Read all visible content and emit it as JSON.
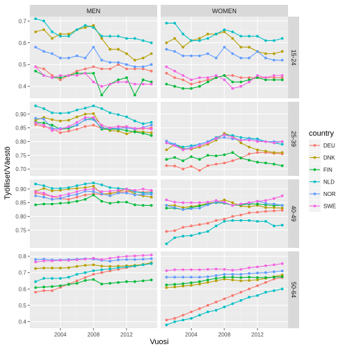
{
  "chart_data": {
    "type": "line",
    "xlabel": "Vuosi",
    "ylabel": "Työlliset/Väestö",
    "x": [
      2001,
      2002,
      2003,
      2004,
      2005,
      2006,
      2007,
      2008,
      2009,
      2010,
      2011,
      2012,
      2013,
      2014,
      2015
    ],
    "x_ticks": [
      2004,
      2008,
      2012
    ],
    "x_tick_labels": [
      "2004",
      "2008",
      "2012"
    ],
    "xlim": [
      2000.3,
      2015.7
    ],
    "grid": true,
    "legend": {
      "title": "country",
      "position": "right"
    },
    "columns": [
      "MEN",
      "WOMEN"
    ],
    "rows": [
      {
        "label": "15-24",
        "ylim": [
          0.345,
          0.72
        ],
        "ticks": [
          0.4,
          0.5,
          0.6,
          0.7
        ],
        "tick_labels": [
          "0.4",
          "0.5",
          "0.6",
          "0.7"
        ]
      },
      {
        "label": "25-39",
        "ylim": [
          0.675,
          0.945
        ],
        "ticks": [
          0.7,
          0.75,
          0.8,
          0.85,
          0.9
        ],
        "tick_labels": [
          "0.70",
          "0.75",
          "0.80",
          "0.85",
          "0.90"
        ]
      },
      {
        "label": "40-49",
        "ylim": [
          0.685,
          0.935
        ],
        "ticks": [
          0.75,
          0.8,
          0.85,
          0.9
        ],
        "tick_labels": [
          "0.75",
          "0.80",
          "0.85",
          "0.90"
        ]
      },
      {
        "label": "50-64",
        "ylim": [
          0.36,
          0.83
        ],
        "ticks": [
          0.4,
          0.5,
          0.6,
          0.7,
          0.8
        ],
        "tick_labels": [
          "0.4",
          "0.5",
          "0.6",
          "0.7",
          "0.8"
        ]
      }
    ],
    "series": [
      {
        "name": "DEU",
        "color": "#F8766D",
        "values": {
          "MEN": {
            "15-24": [
              0.49,
              0.48,
              0.45,
              0.43,
              0.45,
              0.47,
              0.48,
              0.49,
              0.48,
              0.48,
              0.5,
              0.48,
              0.48,
              0.48,
              0.47
            ],
            "25-39": [
              0.862,
              0.855,
              0.848,
              0.832,
              0.838,
              0.845,
              0.855,
              0.86,
              0.847,
              0.85,
              0.855,
              0.85,
              0.845,
              0.847,
              0.85
            ],
            "40-49": [
              0.885,
              0.88,
              0.872,
              0.865,
              0.862,
              0.87,
              0.878,
              0.882,
              0.88,
              0.885,
              0.888,
              0.89,
              0.89,
              0.888,
              0.89
            ],
            "50-64": [
              0.58,
              0.59,
              0.59,
              0.61,
              0.63,
              0.65,
              0.67,
              0.69,
              0.7,
              0.71,
              0.72,
              0.73,
              0.74,
              0.75,
              0.76
            ]
          },
          "WOMEN": {
            "15-24": [
              0.46,
              0.44,
              0.43,
              0.41,
              0.42,
              0.43,
              0.44,
              0.45,
              0.45,
              0.44,
              0.44,
              0.44,
              0.44,
              0.44,
              0.44
            ],
            "25-39": [
              0.712,
              0.711,
              0.7,
              0.71,
              0.695,
              0.712,
              0.718,
              0.722,
              0.73,
              0.74,
              0.755,
              0.76,
              0.76,
              0.757,
              0.755
            ],
            "40-49": [
              0.745,
              0.748,
              0.76,
              0.765,
              0.77,
              0.775,
              0.785,
              0.79,
              0.8,
              0.805,
              0.813,
              0.815,
              0.818,
              0.82,
              0.822
            ],
            "50-64": [
              0.41,
              0.42,
              0.44,
              0.46,
              0.48,
              0.5,
              0.52,
              0.54,
              0.56,
              0.58,
              0.6,
              0.62,
              0.64,
              0.66,
              0.67
            ]
          }
        }
      },
      {
        "name": "DNK",
        "color": "#B79F00",
        "values": {
          "MEN": {
            "15-24": [
              0.65,
              0.66,
              0.62,
              0.64,
              0.64,
              0.66,
              0.67,
              0.68,
              0.62,
              0.57,
              0.57,
              0.55,
              0.52,
              0.53,
              0.55
            ],
            "25-39": [
              0.878,
              0.888,
              0.88,
              0.875,
              0.878,
              0.89,
              0.9,
              0.902,
              0.855,
              0.84,
              0.838,
              0.828,
              0.838,
              0.835,
              0.832
            ],
            "40-49": [
              0.892,
              0.902,
              0.893,
              0.895,
              0.9,
              0.902,
              0.905,
              0.91,
              0.882,
              0.882,
              0.89,
              0.9,
              0.88,
              0.875,
              0.87
            ],
            "50-64": [
              0.725,
              0.728,
              0.728,
              0.728,
              0.73,
              0.738,
              0.745,
              0.748,
              0.74,
              0.738,
              0.74,
              0.742,
              0.745,
              0.75,
              0.76
            ]
          },
          "WOMEN": {
            "15-24": [
              0.6,
              0.62,
              0.58,
              0.61,
              0.62,
              0.64,
              0.64,
              0.65,
              0.62,
              0.58,
              0.58,
              0.56,
              0.55,
              0.55,
              0.56
            ],
            "25-39": [
              0.77,
              0.79,
              0.775,
              0.772,
              0.78,
              0.79,
              0.805,
              0.83,
              0.82,
              0.795,
              0.78,
              0.77,
              0.765,
              0.76,
              0.76
            ],
            "40-49": [
              0.84,
              0.84,
              0.832,
              0.836,
              0.84,
              0.848,
              0.852,
              0.86,
              0.85,
              0.838,
              0.835,
              0.84,
              0.832,
              0.832,
              0.83
            ],
            "50-64": [
              0.608,
              0.612,
              0.618,
              0.622,
              0.63,
              0.64,
              0.65,
              0.66,
              0.655,
              0.65,
              0.652,
              0.656,
              0.665,
              0.675,
              0.685
            ]
          }
        }
      },
      {
        "name": "FIN",
        "color": "#00BA38",
        "values": {
          "MEN": {
            "15-24": [
              0.47,
              0.45,
              0.44,
              0.44,
              0.45,
              0.46,
              0.46,
              0.46,
              0.36,
              0.41,
              0.43,
              0.44,
              0.36,
              0.43,
              0.42
            ],
            "25-39": [
              0.87,
              0.868,
              0.86,
              0.845,
              0.848,
              0.86,
              0.88,
              0.885,
              0.845,
              0.845,
              0.845,
              0.84,
              0.835,
              0.83,
              0.822
            ],
            "40-49": [
              0.842,
              0.845,
              0.845,
              0.848,
              0.85,
              0.855,
              0.862,
              0.878,
              0.855,
              0.848,
              0.852,
              0.852,
              0.842,
              0.84,
              0.84
            ],
            "50-64": [
              0.608,
              0.612,
              0.615,
              0.62,
              0.628,
              0.635,
              0.652,
              0.658,
              0.63,
              0.635,
              0.64,
              0.645,
              0.645,
              0.65,
              0.655
            ]
          },
          "WOMEN": {
            "15-24": [
              0.41,
              0.4,
              0.39,
              0.39,
              0.4,
              0.42,
              0.44,
              0.45,
              0.42,
              0.42,
              0.43,
              0.44,
              0.43,
              0.43,
              0.43
            ],
            "25-39": [
              0.735,
              0.742,
              0.73,
              0.745,
              0.735,
              0.75,
              0.748,
              0.752,
              0.76,
              0.74,
              0.732,
              0.725,
              0.722,
              0.718,
              0.712
            ],
            "40-49": [
              0.83,
              0.83,
              0.825,
              0.832,
              0.838,
              0.845,
              0.85,
              0.848,
              0.84,
              0.842,
              0.845,
              0.845,
              0.842,
              0.84,
              0.84
            ],
            "50-64": [
              0.625,
              0.628,
              0.632,
              0.638,
              0.645,
              0.655,
              0.665,
              0.672,
              0.672,
              0.67,
              0.672,
              0.67,
              0.67,
              0.672,
              0.675
            ]
          }
        }
      },
      {
        "name": "NLD",
        "color": "#00BFC4",
        "values": {
          "MEN": {
            "15-24": [
              0.71,
              0.7,
              0.65,
              0.63,
              0.63,
              0.66,
              0.68,
              0.67,
              0.63,
              0.63,
              0.63,
              0.62,
              0.62,
              0.61,
              0.6
            ],
            "25-39": [
              0.93,
              0.92,
              0.905,
              0.903,
              0.905,
              0.915,
              0.922,
              0.93,
              0.92,
              0.905,
              0.898,
              0.89,
              0.875,
              0.865,
              0.87
            ],
            "40-49": [
              0.918,
              0.912,
              0.902,
              0.902,
              0.905,
              0.912,
              0.918,
              0.922,
              0.915,
              0.905,
              0.902,
              0.9,
              0.89,
              0.885,
              0.885
            ],
            "50-64": [
              0.645,
              0.665,
              0.665,
              0.665,
              0.672,
              0.69,
              0.7,
              0.712,
              0.718,
              0.722,
              0.73,
              0.735,
              0.74,
              0.748,
              0.755
            ]
          },
          "WOMEN": {
            "15-24": [
              0.69,
              0.69,
              0.64,
              0.61,
              0.61,
              0.62,
              0.64,
              0.66,
              0.65,
              0.63,
              0.63,
              0.63,
              0.61,
              0.61,
              0.62
            ],
            "25-39": [
              0.795,
              0.79,
              0.78,
              0.785,
              0.79,
              0.8,
              0.815,
              0.825,
              0.822,
              0.815,
              0.812,
              0.81,
              0.8,
              0.795,
              0.79
            ],
            "40-49": [
              0.7,
              0.722,
              0.728,
              0.73,
              0.738,
              0.745,
              0.765,
              0.782,
              0.785,
              0.785,
              0.785,
              0.782,
              0.782,
              0.765,
              0.768
            ],
            "50-64": [
              0.38,
              0.4,
              0.41,
              0.42,
              0.44,
              0.46,
              0.47,
              0.49,
              0.51,
              0.53,
              0.55,
              0.56,
              0.58,
              0.59,
              0.6
            ]
          }
        }
      },
      {
        "name": "NOR",
        "color": "#619CFF",
        "values": {
          "MEN": {
            "15-24": [
              0.58,
              0.56,
              0.55,
              0.53,
              0.53,
              0.54,
              0.53,
              0.58,
              0.52,
              0.51,
              0.51,
              0.5,
              0.49,
              0.49,
              0.5
            ],
            "25-39": [
              0.885,
              0.882,
              0.848,
              0.848,
              0.852,
              0.86,
              0.88,
              0.88,
              0.85,
              0.848,
              0.848,
              0.85,
              0.845,
              0.852,
              0.86
            ],
            "40-49": [
              0.875,
              0.87,
              0.862,
              0.865,
              0.875,
              0.88,
              0.892,
              0.89,
              0.882,
              0.875,
              0.885,
              0.885,
              0.878,
              0.88,
              0.88
            ],
            "50-64": [
              0.78,
              0.782,
              0.778,
              0.778,
              0.78,
              0.782,
              0.785,
              0.782,
              0.775,
              0.77,
              0.778,
              0.78,
              0.78,
              0.782,
              0.785
            ]
          },
          "WOMEN": {
            "15-24": [
              0.57,
              0.56,
              0.54,
              0.54,
              0.54,
              0.55,
              0.53,
              0.58,
              0.55,
              0.53,
              0.53,
              0.56,
              0.53,
              0.52,
              0.52
            ],
            "25-39": [
              0.802,
              0.79,
              0.77,
              0.78,
              0.79,
              0.8,
              0.81,
              0.815,
              0.81,
              0.805,
              0.81,
              0.805,
              0.8,
              0.8,
              0.8
            ],
            "40-49": [
              0.84,
              0.832,
              0.825,
              0.828,
              0.83,
              0.842,
              0.852,
              0.85,
              0.84,
              0.845,
              0.848,
              0.855,
              0.848,
              0.845,
              0.84
            ],
            "50-64": [
              0.672,
              0.672,
              0.672,
              0.672,
              0.672,
              0.675,
              0.682,
              0.69,
              0.69,
              0.69,
              0.695,
              0.698,
              0.7,
              0.705,
              0.71
            ]
          }
        }
      },
      {
        "name": "SWE",
        "color": "#F564E3",
        "values": {
          "MEN": {
            "15-24": [
              0.49,
              0.45,
              0.44,
              0.45,
              0.45,
              0.45,
              0.46,
              0.42,
              0.4,
              0.41,
              0.42,
              0.42,
              0.41,
              0.41,
              0.41
            ],
            "25-39": [
              0.868,
              0.86,
              0.84,
              0.845,
              0.855,
              0.87,
              0.888,
              0.888,
              0.86,
              0.85,
              0.855,
              0.855,
              0.848,
              0.85,
              0.845
            ],
            "40-49": [
              0.89,
              0.885,
              0.872,
              0.875,
              0.882,
              0.89,
              0.898,
              0.9,
              0.89,
              0.892,
              0.895,
              0.9,
              0.895,
              0.9,
              0.895
            ],
            "50-64": [
              0.765,
              0.772,
              0.772,
              0.775,
              0.775,
              0.778,
              0.782,
              0.788,
              0.78,
              0.788,
              0.795,
              0.8,
              0.802,
              0.805,
              0.808
            ]
          },
          "WOMEN": {
            "15-24": [
              0.49,
              0.47,
              0.45,
              0.43,
              0.44,
              0.44,
              0.45,
              0.43,
              0.39,
              0.4,
              0.42,
              0.45,
              0.44,
              0.45,
              0.45
            ],
            "25-39": [
              0.795,
              0.785,
              0.77,
              0.775,
              0.785,
              0.795,
              0.812,
              0.825,
              0.815,
              0.805,
              0.805,
              0.8,
              0.8,
              0.795,
              0.8
            ],
            "40-49": [
              0.86,
              0.852,
              0.85,
              0.85,
              0.85,
              0.852,
              0.858,
              0.852,
              0.84,
              0.845,
              0.85,
              0.855,
              0.858,
              0.865,
              0.875
            ],
            "50-64": [
              0.712,
              0.718,
              0.718,
              0.718,
              0.718,
              0.72,
              0.722,
              0.72,
              0.715,
              0.72,
              0.73,
              0.735,
              0.742,
              0.748,
              0.755
            ]
          }
        }
      }
    ]
  }
}
